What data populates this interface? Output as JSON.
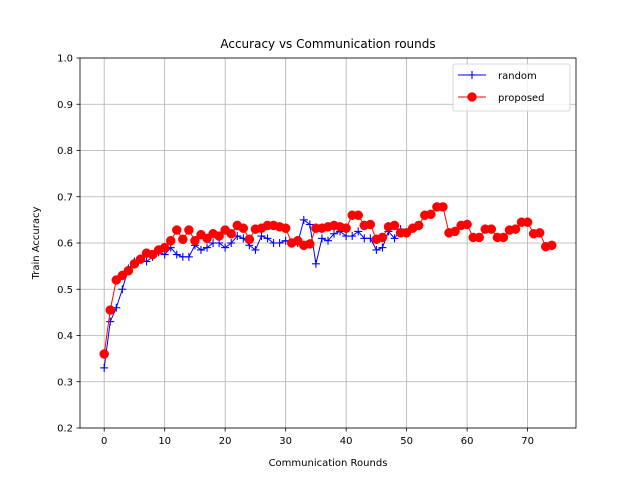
{
  "chart_data": {
    "type": "line",
    "title": "Accuracy vs Communication rounds",
    "xlabel": "Communication Rounds",
    "ylabel": "Train Accuracy",
    "xlim": [
      -4,
      78
    ],
    "ylim": [
      0.2,
      1.0
    ],
    "xticks": [
      0,
      10,
      20,
      30,
      40,
      50,
      60,
      70
    ],
    "yticks": [
      0.2,
      0.3,
      0.4,
      0.5,
      0.6,
      0.7,
      0.8,
      0.9,
      1.0
    ],
    "xtick_labels": [
      "0",
      "10",
      "20",
      "30",
      "40",
      "50",
      "60",
      "70"
    ],
    "ytick_labels": [
      "0.2",
      "0.3",
      "0.4",
      "0.5",
      "0.6",
      "0.7",
      "0.8",
      "0.9",
      "1.0"
    ],
    "grid": true,
    "legend_position": "top-right",
    "series": [
      {
        "name": "random",
        "color": "#0000ff",
        "marker": "plus",
        "x": [
          0,
          1,
          2,
          3,
          4,
          5,
          6,
          7,
          8,
          9,
          10,
          11,
          12,
          13,
          14,
          15,
          16,
          17,
          18,
          19,
          20,
          21,
          22,
          23,
          24,
          25,
          26,
          27,
          28,
          29,
          30,
          31,
          32,
          33,
          34,
          35,
          36,
          37,
          38,
          39,
          40,
          41,
          42,
          43,
          44,
          45,
          46,
          47,
          48,
          49
        ],
        "values": [
          0.33,
          0.43,
          0.46,
          0.5,
          0.545,
          0.56,
          0.565,
          0.56,
          0.57,
          0.58,
          0.575,
          0.59,
          0.575,
          0.57,
          0.57,
          0.595,
          0.585,
          0.59,
          0.6,
          0.6,
          0.59,
          0.6,
          0.615,
          0.61,
          0.595,
          0.585,
          0.615,
          0.61,
          0.6,
          0.6,
          0.605,
          0.6,
          0.6,
          0.65,
          0.64,
          0.555,
          0.61,
          0.605,
          0.62,
          0.625,
          0.615,
          0.615,
          0.625,
          0.61,
          0.61,
          0.585,
          0.59,
          0.625,
          0.61,
          0.63
        ]
      },
      {
        "name": "proposed",
        "color": "#ff0000",
        "marker": "circle",
        "x": [
          0,
          1,
          2,
          3,
          4,
          5,
          6,
          7,
          8,
          9,
          10,
          11,
          12,
          13,
          14,
          15,
          16,
          17,
          18,
          19,
          20,
          21,
          22,
          23,
          24,
          25,
          26,
          27,
          28,
          29,
          30,
          31,
          32,
          33,
          34,
          35,
          36,
          37,
          38,
          39,
          40,
          41,
          42,
          43,
          44,
          45,
          46,
          47,
          48,
          49,
          50,
          51,
          52,
          53,
          54,
          55,
          56,
          57,
          58,
          59,
          60,
          61,
          62,
          63,
          64,
          65,
          66,
          67,
          68,
          69,
          70,
          71,
          72,
          73,
          74
        ],
        "values": [
          0.36,
          0.455,
          0.52,
          0.53,
          0.54,
          0.555,
          0.565,
          0.578,
          0.575,
          0.585,
          0.59,
          0.605,
          0.628,
          0.608,
          0.628,
          0.605,
          0.618,
          0.61,
          0.62,
          0.615,
          0.628,
          0.62,
          0.638,
          0.632,
          0.608,
          0.63,
          0.632,
          0.638,
          0.638,
          0.635,
          0.632,
          0.6,
          0.605,
          0.595,
          0.598,
          0.632,
          0.632,
          0.635,
          0.638,
          0.635,
          0.632,
          0.66,
          0.66,
          0.638,
          0.64,
          0.608,
          0.612,
          0.635,
          0.638,
          0.622,
          0.622,
          0.632,
          0.638,
          0.66,
          0.662,
          0.678,
          0.678,
          0.622,
          0.625,
          0.638,
          0.64,
          0.612,
          0.612,
          0.63,
          0.63,
          0.612,
          0.612,
          0.628,
          0.63,
          0.645,
          0.645,
          0.62,
          0.622,
          0.592,
          0.595
        ]
      }
    ]
  }
}
